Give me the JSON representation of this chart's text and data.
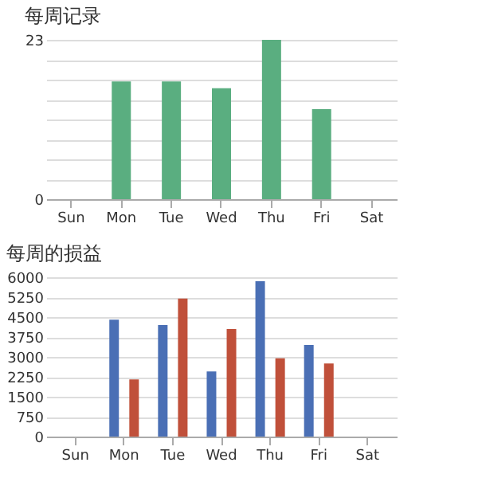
{
  "chart_data": [
    {
      "type": "bar",
      "title": "每周记录",
      "categories": [
        "Sun",
        "Mon",
        "Tue",
        "Wed",
        "Thu",
        "Fri",
        "Sat"
      ],
      "series": [
        {
          "color": "#5aae80",
          "values": [
            0,
            17,
            17,
            16,
            23,
            13,
            0
          ]
        }
      ],
      "ylim": [
        0,
        23
      ],
      "yticks": [
        0,
        {
          "value": 2.875,
          "label": null
        },
        {
          "value": 5.75,
          "label": null
        },
        {
          "value": 8.625,
          "label": null
        },
        {
          "value": 11.5,
          "label": null
        },
        {
          "value": 14.375,
          "label": null
        },
        {
          "value": 17.25,
          "label": null
        },
        {
          "value": 20.125,
          "label": null
        },
        23
      ],
      "grid": "y"
    },
    {
      "type": "bar",
      "title": "每周的损益",
      "categories": [
        "Sun",
        "Mon",
        "Tue",
        "Wed",
        "Thu",
        "Fri",
        "Sat"
      ],
      "series": [
        {
          "color": "#4a6fb5",
          "values": [
            0,
            4400,
            4200,
            2450,
            5850,
            3450,
            0
          ]
        },
        {
          "color": "#c0503a",
          "values": [
            0,
            2150,
            5200,
            4050,
            2950,
            2750,
            0
          ]
        }
      ],
      "ylim": [
        0,
        6000
      ],
      "yticks": [
        0,
        750,
        1500,
        2250,
        3000,
        3750,
        4500,
        5250,
        6000
      ],
      "grid": "y"
    }
  ]
}
